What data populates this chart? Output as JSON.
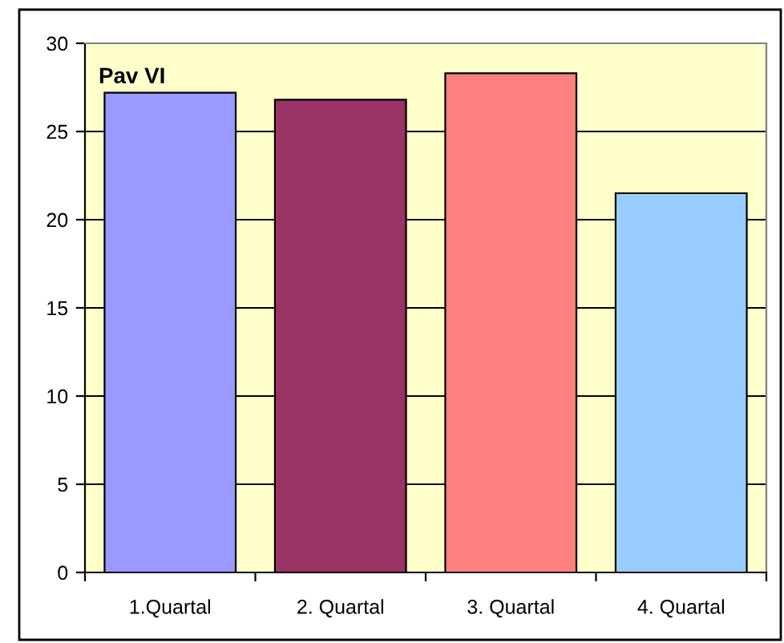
{
  "chart_data": {
    "type": "bar",
    "title": "Pav VI",
    "categories": [
      "1.Quartal",
      "2. Quartal",
      "3. Quartal",
      "4. Quartal"
    ],
    "values": [
      27.2,
      26.8,
      28.3,
      21.5
    ],
    "colors": [
      "#9999ff",
      "#993366",
      "#ff8080",
      "#99ccff"
    ],
    "ylim": [
      0,
      30
    ],
    "yticks": [
      0,
      5,
      10,
      15,
      20,
      25,
      30
    ],
    "grid": "y"
  }
}
